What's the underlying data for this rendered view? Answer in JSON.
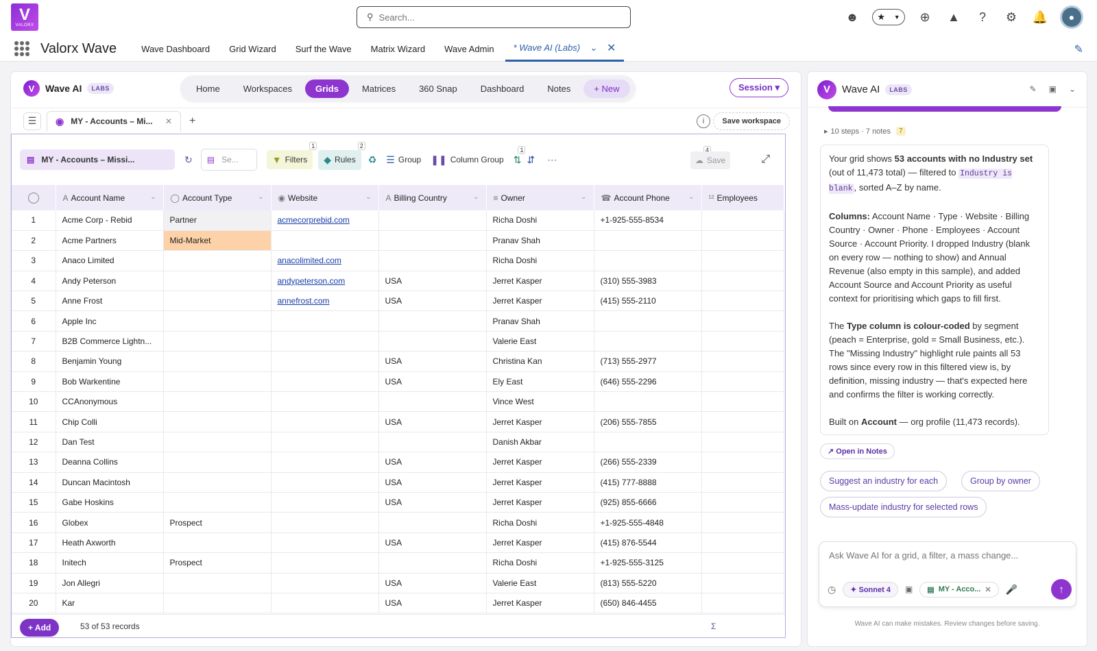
{
  "brand": {
    "logo_text": "VALORX",
    "app_name": "Valorx Wave"
  },
  "search": {
    "placeholder": "Search..."
  },
  "top_icons": [
    "bot-icon",
    "favorites-icon",
    "add-icon",
    "trailhead-icon",
    "help-icon",
    "settings-icon",
    "bell-icon",
    "avatar"
  ],
  "nav": {
    "items": [
      "Wave Dashboard",
      "Grid Wizard",
      "Surf the Wave",
      "Matrix Wizard",
      "Wave Admin"
    ],
    "active_tab": "* Wave AI (Labs)"
  },
  "panel": {
    "title": "Wave AI",
    "labs": "LABS",
    "tabs": [
      "Home",
      "Workspaces",
      "Grids",
      "Matrices",
      "360 Snap",
      "Dashboard",
      "Notes",
      "+ New"
    ],
    "active_tab": "Grids",
    "session_label": "Session ▾",
    "grid_tab": "MY - Accounts – Mi...",
    "save_workspace": "Save workspace"
  },
  "toolbar": {
    "grid_name": "MY - Accounts – Missi...",
    "search_placeholder": "Se...",
    "filters": "Filters",
    "filters_badge": "1",
    "rules": "Rules",
    "rules_badge": "2",
    "group": "Group",
    "column_group": "Column Group",
    "sort_badge": "1",
    "hidden_badge": "4",
    "save": "Save"
  },
  "grid": {
    "columns": [
      "Account Name",
      "Account Type",
      "Website",
      "Billing Country",
      "Owner",
      "Account Phone",
      "Employees"
    ],
    "rows": [
      {
        "n": "1",
        "name": "Acme Corp - Rebid",
        "type": "Partner",
        "web": "acmecorprebid.com",
        "country": "",
        "owner": "Richa Doshi",
        "phone": "+1-925-555-8534"
      },
      {
        "n": "2",
        "name": "Acme Partners",
        "type": "Mid-Market",
        "web": "",
        "country": "",
        "owner": "Pranav Shah",
        "phone": ""
      },
      {
        "n": "3",
        "name": "Anaco Limited",
        "type": "",
        "web": "anacolimited.com",
        "country": "",
        "owner": "Richa Doshi",
        "phone": ""
      },
      {
        "n": "4",
        "name": "Andy Peterson",
        "type": "",
        "web": "andypeterson.com",
        "country": "USA",
        "owner": "Jerret Kasper",
        "phone": "(310) 555-3983"
      },
      {
        "n": "5",
        "name": "Anne Frost",
        "type": "",
        "web": "annefrost.com",
        "country": "USA",
        "owner": "Jerret Kasper",
        "phone": "(415) 555-2110"
      },
      {
        "n": "6",
        "name": "Apple Inc",
        "type": "",
        "web": "",
        "country": "",
        "owner": "Pranav Shah",
        "phone": ""
      },
      {
        "n": "7",
        "name": "B2B Commerce Lightn...",
        "type": "",
        "web": "",
        "country": "",
        "owner": "Valerie East",
        "phone": ""
      },
      {
        "n": "8",
        "name": "Benjamin Young",
        "type": "",
        "web": "",
        "country": "USA",
        "owner": "Christina Kan",
        "phone": "(713) 555-2977"
      },
      {
        "n": "9",
        "name": "Bob Warkentine",
        "type": "",
        "web": "",
        "country": "USA",
        "owner": "Ely East",
        "phone": "(646) 555-2296"
      },
      {
        "n": "10",
        "name": "CCAnonymous",
        "type": "",
        "web": "",
        "country": "",
        "owner": "Vince West",
        "phone": ""
      },
      {
        "n": "11",
        "name": "Chip Colli",
        "type": "",
        "web": "",
        "country": "USA",
        "owner": "Jerret Kasper",
        "phone": "(206) 555-7855"
      },
      {
        "n": "12",
        "name": "Dan Test",
        "type": "",
        "web": "",
        "country": "",
        "owner": "Danish Akbar",
        "phone": ""
      },
      {
        "n": "13",
        "name": "Deanna Collins",
        "type": "",
        "web": "",
        "country": "USA",
        "owner": "Jerret Kasper",
        "phone": "(266) 555-2339"
      },
      {
        "n": "14",
        "name": "Duncan Macintosh",
        "type": "",
        "web": "",
        "country": "USA",
        "owner": "Jerret Kasper",
        "phone": "(415) 777-8888"
      },
      {
        "n": "15",
        "name": "Gabe Hoskins",
        "type": "",
        "web": "",
        "country": "USA",
        "owner": "Jerret Kasper",
        "phone": "(925) 855-6666"
      },
      {
        "n": "16",
        "name": "Globex",
        "type": "Prospect",
        "web": "",
        "country": "",
        "owner": "Richa Doshi",
        "phone": "+1-925-555-4848"
      },
      {
        "n": "17",
        "name": "Heath Axworth",
        "type": "",
        "web": "",
        "country": "USA",
        "owner": "Jerret Kasper",
        "phone": "(415) 876-5544"
      },
      {
        "n": "18",
        "name": "Initech",
        "type": "Prospect",
        "web": "",
        "country": "",
        "owner": "Richa Doshi",
        "phone": "+1-925-555-3125"
      },
      {
        "n": "19",
        "name": "Jon Allegri",
        "type": "",
        "web": "",
        "country": "USA",
        "owner": "Valerie East",
        "phone": "(813) 555-5220"
      },
      {
        "n": "20",
        "name": "Kar",
        "type": "",
        "web": "",
        "country": "USA",
        "owner": "Jerret Kasper",
        "phone": "(650) 846-4455"
      }
    ],
    "add_label": "+ Add",
    "record_count": "53 of 53 records",
    "sigma": "Σ"
  },
  "assistant": {
    "title": "Wave AI",
    "labs": "LABS",
    "steps": "10 steps · 7 notes",
    "steps_badge": "7",
    "msg_p1_a": "Your grid shows ",
    "msg_p1_b": "53 accounts with no Industry set",
    "msg_p1_c": " (out of 11,473 total) — filtered to ",
    "msg_p1_code1": "Industry is blank",
    "msg_p1_d": ", sorted A–Z by name.",
    "msg_p2_label": "Columns:",
    "msg_p2_text": " Account Name · Type · Website · Billing Country · Owner · Phone · Employees · Account Source · Account Priority. I dropped Industry (blank on every row — nothing to show) and Annual Revenue (also empty in this sample), and added Account Source and Account Priority as useful context for prioritising which gaps to fill first.",
    "msg_p3_a": "The ",
    "msg_p3_b": "Type column is colour-coded",
    "msg_p3_c": " by segment (peach = Enterprise, gold = Small Business, etc.). The \"Missing Industry\" highlight rule paints all 53 rows since every row in this filtered view is, by definition, missing industry — that's expected here and confirms the filter is working correctly.",
    "msg_p4_a": "Built on ",
    "msg_p4_b": "Account",
    "msg_p4_c": " — org profile (11,473 records).",
    "open_notes": "↗ Open in Notes",
    "suggestions": [
      "Suggest an industry for each",
      "Group by owner",
      "Mass-update industry for selected rows"
    ],
    "composer_placeholder": "Ask Wave AI for a grid, a filter, a mass change...",
    "model": "✦ Sonnet 4",
    "context_grid": "MY - Acco...",
    "disclaimer": "Wave AI can make mistakes. Review changes before saving."
  },
  "colors": {
    "accent": "#8e35cf",
    "link": "#1a3ea8",
    "midmarket": "#fdd2a8"
  }
}
